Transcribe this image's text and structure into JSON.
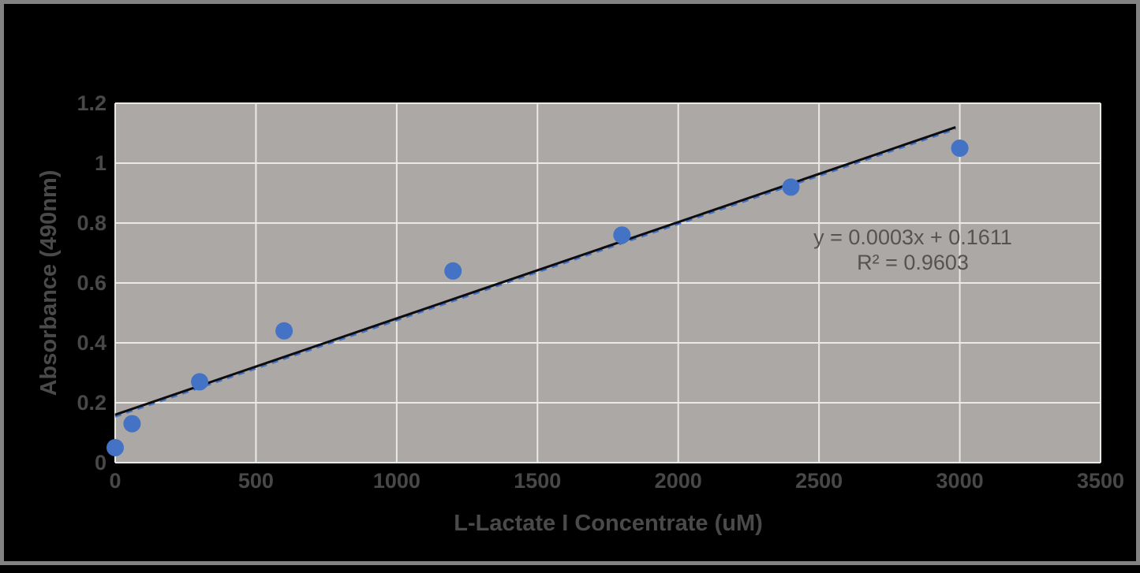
{
  "frame": {
    "background_color": "#000000",
    "border_color": "#828282"
  },
  "chart_data": {
    "type": "scatter",
    "title": "",
    "xlabel": "L-Lactate I Concentrate (uM)",
    "ylabel": "Absorbance (490nm)",
    "xlim": [
      0,
      3500
    ],
    "ylim": [
      0,
      1.2
    ],
    "x_ticks": [
      0,
      500,
      1000,
      1500,
      2000,
      2500,
      3000,
      3500
    ],
    "x_tick_labels": [
      "0",
      "500",
      "1000",
      "1500",
      "2000",
      "2500",
      "3000",
      "3500"
    ],
    "y_ticks": [
      0,
      0.2,
      0.4,
      0.6,
      0.8,
      1,
      1.2
    ],
    "y_tick_labels": [
      "0",
      "0.2",
      "0.4",
      "0.6",
      "0.8",
      "1",
      "1.2"
    ],
    "grid": true,
    "legend": "none",
    "plot_bg_color": "#aba8a5",
    "grid_color": "#ebe9e6",
    "point_color": "#4472c4",
    "trendline_solid_color": "#0d0d12",
    "trendline_dashed_color": "#4472c4",
    "points": [
      {
        "x": 0,
        "y": 0.05
      },
      {
        "x": 60,
        "y": 0.13
      },
      {
        "x": 300,
        "y": 0.27
      },
      {
        "x": 600,
        "y": 0.44
      },
      {
        "x": 1200,
        "y": 0.64
      },
      {
        "x": 1800,
        "y": 0.76
      },
      {
        "x": 2400,
        "y": 0.92
      },
      {
        "x": 3000,
        "y": 1.05
      }
    ],
    "trendline": {
      "x1": 0,
      "y1": 0.16,
      "x2": 2985,
      "y2": 1.12
    },
    "annotation": {
      "line1": "y = 0.0003x + 0.1611",
      "line2": "R² = 0.9603"
    }
  }
}
